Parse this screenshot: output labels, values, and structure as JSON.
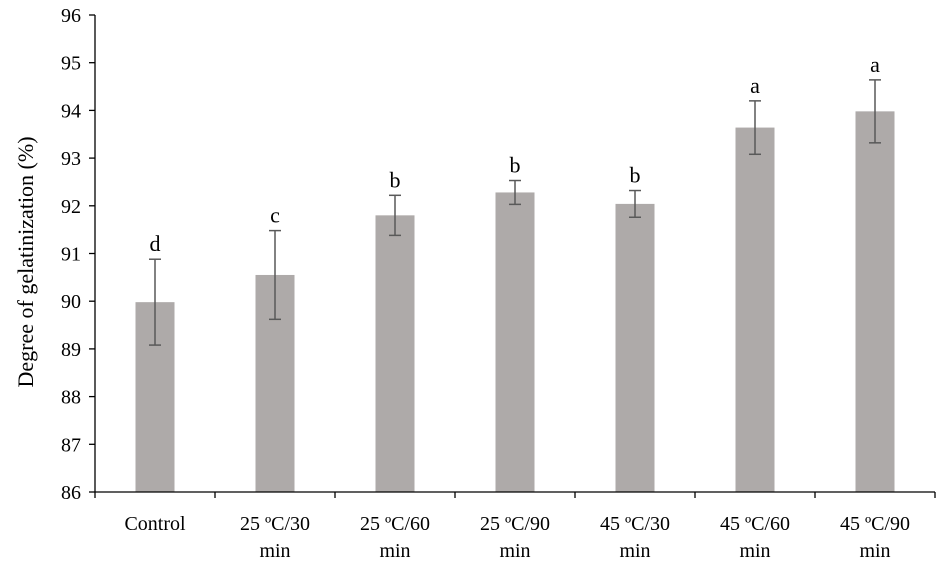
{
  "chart_data": {
    "type": "bar",
    "title": "",
    "xlabel": "",
    "ylabel": "Degree of gelatinization (%)",
    "ylim": [
      86,
      96
    ],
    "yticks": [
      86,
      87,
      88,
      89,
      90,
      91,
      92,
      93,
      94,
      95,
      96
    ],
    "categories": [
      [
        "Control"
      ],
      [
        "25 ºC/30",
        "min"
      ],
      [
        "25 ºC/60",
        "min"
      ],
      [
        "25 ºC/90",
        "min"
      ],
      [
        "45 ºC/30",
        "min"
      ],
      [
        "45 ºC/60",
        "min"
      ],
      [
        "45 ºC/90",
        "min"
      ]
    ],
    "values": [
      89.98,
      90.55,
      91.8,
      92.28,
      92.04,
      93.64,
      93.98
    ],
    "errors": [
      0.9,
      0.93,
      0.42,
      0.25,
      0.28,
      0.56,
      0.66
    ],
    "significance": [
      "d",
      "c",
      "b",
      "b",
      "b",
      "a",
      "a"
    ],
    "grid": false,
    "legend": "none",
    "colors": {
      "bar": "#aeaaa9",
      "error_bar": "#595959",
      "axis": "#000000"
    }
  }
}
